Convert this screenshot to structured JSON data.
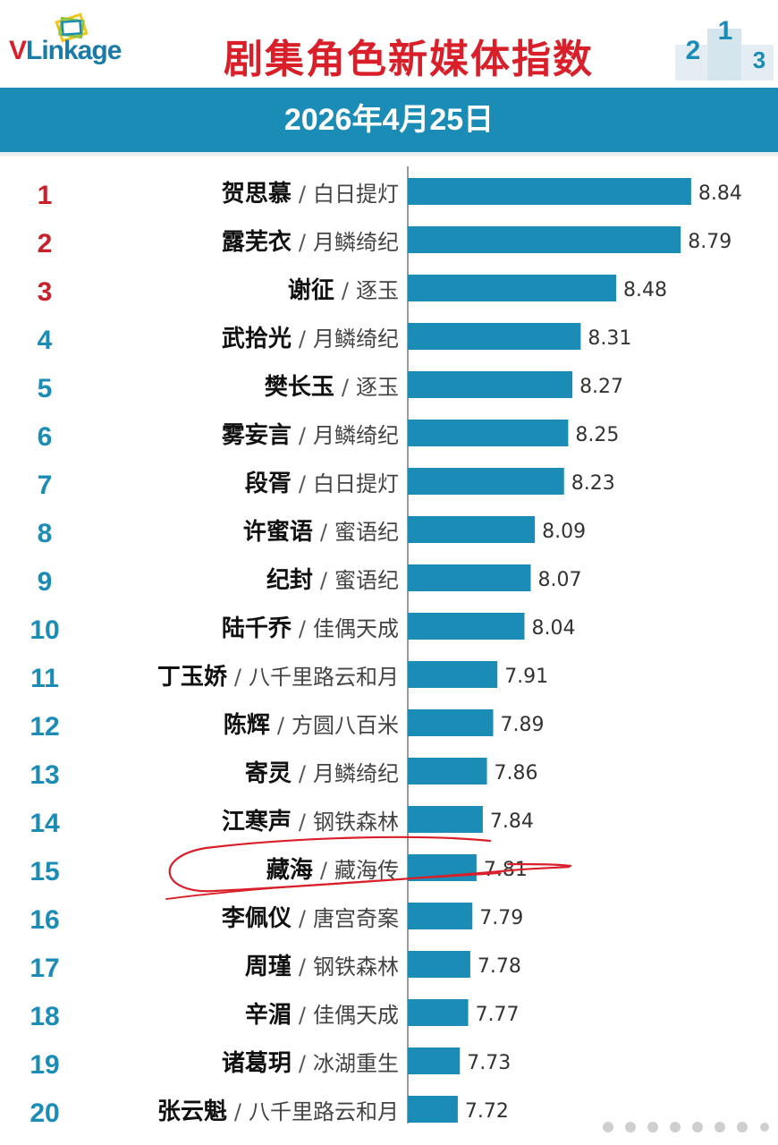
{
  "header": {
    "logo_brand_v": "V",
    "logo_brand_rest": "Linkage",
    "title": "剧集角色新媒体指数",
    "date": "2026年4月25日",
    "podium_numbers": [
      "2",
      "1",
      "3"
    ]
  },
  "colors": {
    "bar": "#1a8cb5",
    "rank_top3": "#c9202a",
    "rank_other": "#1a8cb5",
    "title_red": "#d9202a",
    "annotation": "#d9202a"
  },
  "chart_data": {
    "type": "bar",
    "orientation": "horizontal",
    "categories": [
      {
        "rank": "1",
        "name": "贺思慕",
        "drama": "白日提灯"
      },
      {
        "rank": "2",
        "name": "露芜衣",
        "drama": "月鳞绮纪"
      },
      {
        "rank": "3",
        "name": "谢征",
        "drama": "逐玉"
      },
      {
        "rank": "4",
        "name": "武拾光",
        "drama": "月鳞绮纪"
      },
      {
        "rank": "5",
        "name": "樊长玉",
        "drama": "逐玉"
      },
      {
        "rank": "6",
        "name": "雾妄言",
        "drama": "月鳞绮纪"
      },
      {
        "rank": "7",
        "name": "段胥",
        "drama": "白日提灯"
      },
      {
        "rank": "8",
        "name": "许蜜语",
        "drama": "蜜语纪"
      },
      {
        "rank": "9",
        "name": "纪封",
        "drama": "蜜语纪"
      },
      {
        "rank": "10",
        "name": "陆千乔",
        "drama": "佳偶天成"
      },
      {
        "rank": "11",
        "name": "丁玉娇",
        "drama": "八千里路云和月"
      },
      {
        "rank": "12",
        "name": "陈辉",
        "drama": "方圆八百米"
      },
      {
        "rank": "13",
        "name": "寄灵",
        "drama": "月鳞绮纪"
      },
      {
        "rank": "14",
        "name": "江寒声",
        "drama": "钢铁森林"
      },
      {
        "rank": "15",
        "name": "藏海",
        "drama": "藏海传"
      },
      {
        "rank": "16",
        "name": "李佩仪",
        "drama": "唐宫奇案"
      },
      {
        "rank": "17",
        "name": "周瑾",
        "drama": "钢铁森林"
      },
      {
        "rank": "18",
        "name": "辛湄",
        "drama": "佳偶天成"
      },
      {
        "rank": "19",
        "name": "诸葛玥",
        "drama": "冰湖重生"
      },
      {
        "rank": "20",
        "name": "张云魁",
        "drama": "八千里路云和月"
      }
    ],
    "values": [
      8.84,
      8.79,
      8.48,
      8.31,
      8.27,
      8.25,
      8.23,
      8.09,
      8.07,
      8.04,
      7.91,
      7.89,
      7.86,
      7.84,
      7.81,
      7.79,
      7.78,
      7.77,
      7.73,
      7.72
    ],
    "value_labels": [
      "8.84",
      "8.79",
      "8.48",
      "8.31",
      "8.27",
      "8.25",
      "8.23",
      "8.09",
      "8.07",
      "8.04",
      "7.91",
      "7.89",
      "7.86",
      "7.84",
      "7.81",
      "7.79",
      "7.78",
      "7.77",
      "7.73",
      "7.72"
    ],
    "separator": "/",
    "axis_baseline_value": 7.48,
    "highlighted_rank": "15",
    "grid": false,
    "legend": "none"
  }
}
